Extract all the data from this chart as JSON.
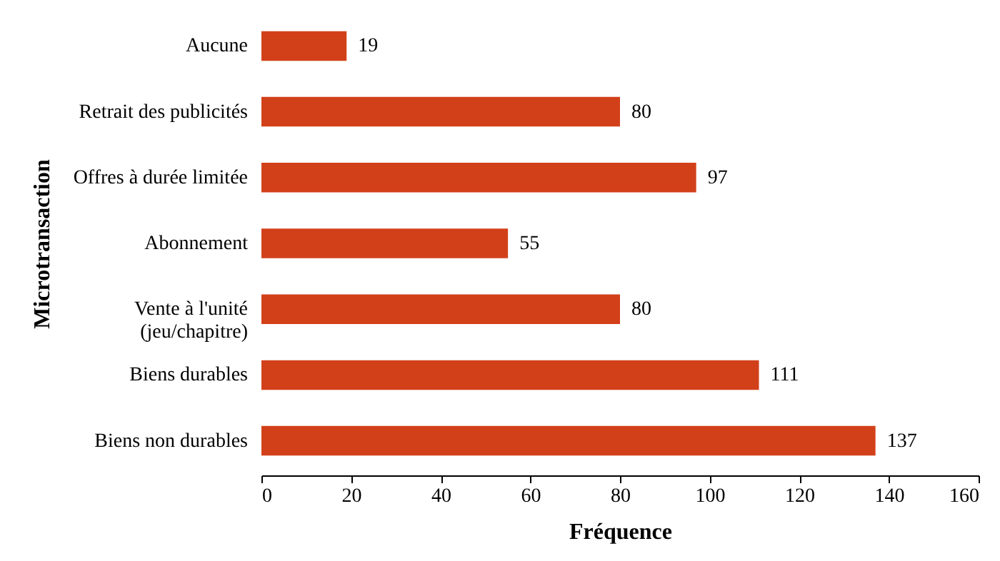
{
  "chart_data": {
    "type": "bar",
    "orientation": "horizontal",
    "xlabel": "Fréquence",
    "ylabel": "Microtransaction",
    "categories": [
      "Aucune",
      "Retrait des publicités",
      "Offres à durée limitée",
      "Abonnement",
      "Vente à l'unité (jeu/chapitre)",
      "Biens durables",
      "Biens non durables"
    ],
    "values": [
      19,
      80,
      97,
      55,
      80,
      111,
      137
    ],
    "color": "#d2401a",
    "xlim": [
      0,
      160
    ],
    "xticks": [
      0,
      20,
      40,
      60,
      80,
      100,
      120,
      140,
      160
    ],
    "data_labels": true,
    "grid": false
  }
}
